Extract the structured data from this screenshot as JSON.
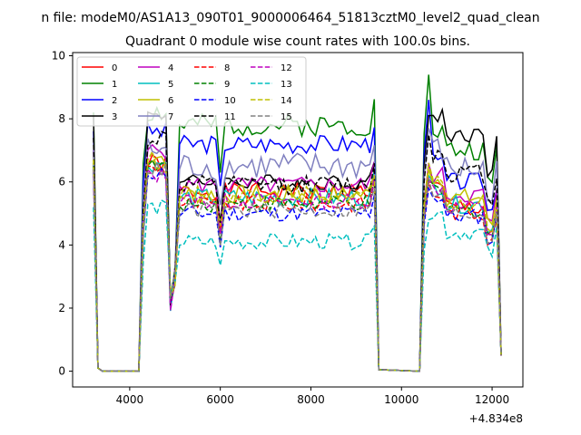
{
  "figure": {
    "suptitle": "n file: modeM0/AS1A13_090T01_9000006464_51813cztM0_level2_quad_clean",
    "title": "Quadrant 0 module wise count rates with 100.0s bins."
  },
  "chart_data": {
    "type": "line",
    "xlim": [
      2740,
      12680
    ],
    "ylim": [
      -0.5,
      10.1
    ],
    "xticks": [
      4000,
      6000,
      8000,
      10000,
      12000
    ],
    "xtick_labels": [
      "4000",
      "6000",
      "8000",
      "10000",
      "12000"
    ],
    "yticks": [
      0,
      2,
      4,
      6,
      8,
      10
    ],
    "ytick_labels": [
      "0",
      "2",
      "4",
      "6",
      "8",
      "10"
    ],
    "x_offset_label": "+4.834e8",
    "grid": false,
    "legend_placement": "upper-left, 4 columns",
    "x": [
      3200,
      3300,
      3400,
      4200,
      4300,
      4400,
      4500,
      4600,
      4700,
      4800,
      4900,
      5000,
      5100,
      5200,
      5300,
      5400,
      5500,
      5600,
      5700,
      5800,
      5900,
      6000,
      6100,
      6200,
      6300,
      6400,
      6500,
      6600,
      6700,
      6800,
      6900,
      7000,
      7100,
      7200,
      7300,
      7400,
      7500,
      7600,
      7700,
      7800,
      7900,
      8000,
      8100,
      8200,
      8300,
      8400,
      8500,
      8600,
      8700,
      8800,
      8900,
      9000,
      9100,
      9200,
      9300,
      9400,
      9500,
      10400,
      10500,
      10600,
      10700,
      10800,
      10900,
      11000,
      11100,
      11200,
      11300,
      11400,
      11500,
      11600,
      11700,
      11800,
      11900,
      12000,
      12100,
      12200
    ],
    "series": [
      {
        "name": "0",
        "color": "#ff0000",
        "dash": "solid",
        "level": 5.7,
        "start": 6.6,
        "ends": 5.2,
        "ends2": 6.0,
        "noise": 0.28,
        "seed": 1
      },
      {
        "name": "1",
        "color": "#008000",
        "dash": "solid",
        "level": 7.8,
        "start": 8.2,
        "ends": 7.0,
        "ends2": 9.4,
        "noise": 0.35,
        "seed": 2
      },
      {
        "name": "2",
        "color": "#0000ff",
        "dash": "solid",
        "level": 7.2,
        "start": 7.6,
        "ends": 6.0,
        "ends2": 8.6,
        "noise": 0.3,
        "seed": 3
      },
      {
        "name": "3",
        "color": "#000000",
        "dash": "solid",
        "level": 6.0,
        "start": 8.1,
        "ends": 7.5,
        "ends2": 8.1,
        "noise": 0.25,
        "seed": 4
      },
      {
        "name": "4",
        "color": "#bf00bf",
        "dash": "solid",
        "level": 5.9,
        "start": 7.0,
        "ends": 5.6,
        "ends2": 6.6,
        "noise": 0.28,
        "seed": 5
      },
      {
        "name": "5",
        "color": "#00bfbf",
        "dash": "solid",
        "level": 5.5,
        "start": 6.6,
        "ends": 5.3,
        "ends2": 6.2,
        "noise": 0.3,
        "seed": 6
      },
      {
        "name": "6",
        "color": "#bfbf00",
        "dash": "solid",
        "level": 5.6,
        "start": 6.8,
        "ends": 5.5,
        "ends2": 6.4,
        "noise": 0.3,
        "seed": 7
      },
      {
        "name": "7",
        "color": "#8080c0",
        "dash": "solid",
        "level": 6.5,
        "start": 7.0,
        "ends": 6.4,
        "ends2": 7.7,
        "noise": 0.45,
        "seed": 8
      },
      {
        "name": "8",
        "color": "#ff0000",
        "dash": "dashed",
        "level": 5.3,
        "start": 6.4,
        "ends": 5.0,
        "ends2": 6.0,
        "noise": 0.25,
        "seed": 9
      },
      {
        "name": "9",
        "color": "#008000",
        "dash": "dashed",
        "level": 5.3,
        "start": 6.5,
        "ends": 5.1,
        "ends2": 6.1,
        "noise": 0.25,
        "seed": 10
      },
      {
        "name": "10",
        "color": "#0000ff",
        "dash": "dashed",
        "level": 5.0,
        "start": 6.3,
        "ends": 4.9,
        "ends2": 5.8,
        "noise": 0.25,
        "seed": 11
      },
      {
        "name": "11",
        "color": "#000000",
        "dash": "dashed",
        "level": 5.9,
        "start": 7.4,
        "ends": 6.3,
        "ends2": 7.5,
        "noise": 0.3,
        "seed": 12
      },
      {
        "name": "12",
        "color": "#bf00bf",
        "dash": "dashed",
        "level": 5.4,
        "start": 6.2,
        "ends": 5.2,
        "ends2": 6.1,
        "noise": 0.25,
        "seed": 13
      },
      {
        "name": "13",
        "color": "#00bfbf",
        "dash": "dashed",
        "level": 4.1,
        "start": 5.2,
        "ends": 4.4,
        "ends2": 4.8,
        "noise": 0.25,
        "seed": 14
      },
      {
        "name": "14",
        "color": "#bfbf00",
        "dash": "dashed",
        "level": 5.6,
        "start": 6.7,
        "ends": 5.3,
        "ends2": 6.6,
        "noise": 0.28,
        "seed": 15
      },
      {
        "name": "15",
        "color": "#808080",
        "dash": "dashed",
        "level": 5.1,
        "start": 6.4,
        "ends": 5.0,
        "ends2": 6.1,
        "noise": 0.25,
        "seed": 16
      }
    ]
  }
}
